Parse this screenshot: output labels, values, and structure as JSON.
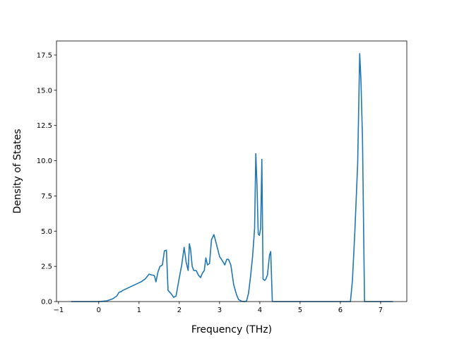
{
  "chart_data": {
    "type": "line",
    "title": "",
    "xlabel": "Frequency (THz)",
    "ylabel": "Density of States",
    "xlim": [
      -1.05,
      7.65
    ],
    "ylim": [
      0,
      18.5
    ],
    "xticks": [
      -1,
      0,
      1,
      2,
      3,
      4,
      5,
      6,
      7
    ],
    "yticks": [
      0.0,
      2.5,
      5.0,
      7.5,
      10.0,
      12.5,
      15.0,
      17.5
    ],
    "xtick_labels": [
      "−1",
      "0",
      "1",
      "2",
      "3",
      "4",
      "5",
      "6",
      "7"
    ],
    "ytick_labels": [
      "0.0",
      "2.5",
      "5.0",
      "7.5",
      "10.0",
      "12.5",
      "15.0",
      "17.5"
    ],
    "grid": false,
    "line_color": "#1f77b4",
    "series": [
      {
        "x": [
          -0.68,
          0.0,
          0.2,
          0.35,
          0.45,
          0.5,
          0.55,
          0.6,
          0.75,
          0.9,
          1.05,
          1.15,
          1.25,
          1.3,
          1.38,
          1.42,
          1.47,
          1.52,
          1.58,
          1.63,
          1.68,
          1.72,
          1.8,
          1.86,
          1.92,
          2.0,
          2.06,
          2.12,
          2.17,
          2.22,
          2.25,
          2.28,
          2.32,
          2.36,
          2.42,
          2.48,
          2.53,
          2.57,
          2.62,
          2.66,
          2.7,
          2.75,
          2.8,
          2.86,
          2.92,
          3.0,
          3.08,
          3.13,
          3.18,
          3.22,
          3.28,
          3.35,
          3.42,
          3.47,
          3.55,
          3.62,
          3.67,
          3.72,
          3.77,
          3.82,
          3.87,
          3.9,
          3.93,
          3.96,
          3.99,
          4.02,
          4.05,
          4.08,
          4.12,
          4.15,
          4.19,
          4.24,
          4.27,
          4.31,
          4.34,
          4.37,
          4.4,
          4.45,
          5.0,
          5.8,
          6.25,
          6.3,
          6.36,
          6.43,
          6.48,
          6.51,
          6.55,
          6.6,
          6.65,
          7.0,
          7.3
        ],
        "y": [
          0.0,
          0.0,
          0.05,
          0.2,
          0.4,
          0.65,
          0.7,
          0.8,
          1.0,
          1.2,
          1.4,
          1.6,
          1.95,
          1.9,
          1.85,
          1.4,
          2.1,
          2.5,
          2.6,
          3.6,
          3.65,
          0.8,
          0.55,
          0.3,
          0.4,
          1.7,
          2.6,
          3.85,
          2.8,
          2.2,
          4.1,
          3.7,
          2.5,
          2.2,
          2.2,
          1.85,
          1.7,
          2.0,
          2.2,
          3.1,
          2.6,
          2.7,
          4.4,
          4.75,
          4.1,
          3.2,
          2.85,
          2.6,
          3.0,
          3.0,
          2.6,
          1.2,
          0.5,
          0.15,
          0.02,
          0.0,
          0.03,
          0.6,
          1.8,
          3.2,
          5.2,
          10.5,
          8.2,
          4.8,
          4.7,
          5.2,
          10.1,
          1.6,
          1.5,
          1.6,
          1.9,
          3.3,
          3.55,
          0.02,
          0.0,
          0.0,
          0.0,
          0.0,
          0.0,
          0.0,
          0.0,
          1.5,
          5.0,
          9.8,
          17.6,
          15.8,
          11.5,
          0.0,
          0.0,
          0.0,
          0.0
        ]
      }
    ]
  }
}
